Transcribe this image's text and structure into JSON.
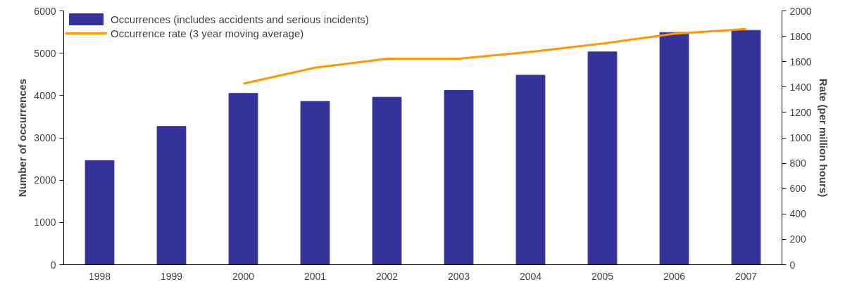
{
  "chart_data": {
    "type": "bar",
    "categories": [
      "1998",
      "1999",
      "2000",
      "2001",
      "2002",
      "2003",
      "2004",
      "2005",
      "2006",
      "2007"
    ],
    "ylabel": "Number of occurrences",
    "y2label": "Rate (per million hours)",
    "ylim": [
      0,
      6000
    ],
    "yticks": [
      0,
      1000,
      2000,
      3000,
      4000,
      5000,
      6000
    ],
    "y2lim": [
      0,
      2000
    ],
    "y2ticks": [
      0,
      200,
      400,
      600,
      800,
      1000,
      1200,
      1400,
      1600,
      1800,
      2000
    ],
    "legend": "top left",
    "grid": false,
    "series": [
      {
        "name": "Occurrences (includes accidents and serious incidents)",
        "color": "#333399",
        "values": [
          2460,
          3270,
          4050,
          3860,
          3960,
          4120,
          4480,
          5030,
          5490,
          5540
        ]
      },
      {
        "name": "Occurrence rate (3 year moving average)",
        "type": "line",
        "axis": "y2",
        "color": "#ff9900",
        "values": [
          null,
          null,
          1427,
          1553,
          1623,
          1623,
          1677,
          1743,
          1820,
          1857
        ]
      }
    ]
  }
}
